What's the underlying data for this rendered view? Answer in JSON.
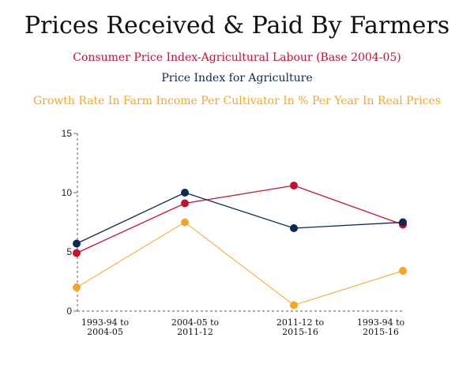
{
  "chart_data": {
    "type": "line",
    "title": "Prices Received & Paid By Farmers",
    "xlabel": "",
    "ylabel": "",
    "ylim": [
      0,
      15
    ],
    "yticks": [
      0,
      5,
      10,
      15
    ],
    "grid": false,
    "legend_position": "top",
    "categories": [
      [
        "1993-94 to",
        "2004-05"
      ],
      [
        "2004-05 to",
        "2011-12"
      ],
      [
        "2011-12 to",
        "2015-16"
      ],
      [
        "1993-94 to",
        "2015-16"
      ]
    ],
    "series": [
      {
        "name": "Consumer Price Index-Agricultural Labour (Base 2004-05)",
        "color": "#c8102e",
        "values": [
          4.9,
          9.1,
          10.6,
          7.3
        ]
      },
      {
        "name": "Price Index for Agriculture",
        "color": "#0d2a55",
        "values": [
          5.7,
          10.0,
          7.0,
          7.5
        ]
      },
      {
        "name": "Growth Rate In Farm Income Per Cultivator In % Per Year In Real Prices",
        "color": "#f5a623",
        "values": [
          2.0,
          7.5,
          0.5,
          3.4
        ]
      }
    ]
  }
}
